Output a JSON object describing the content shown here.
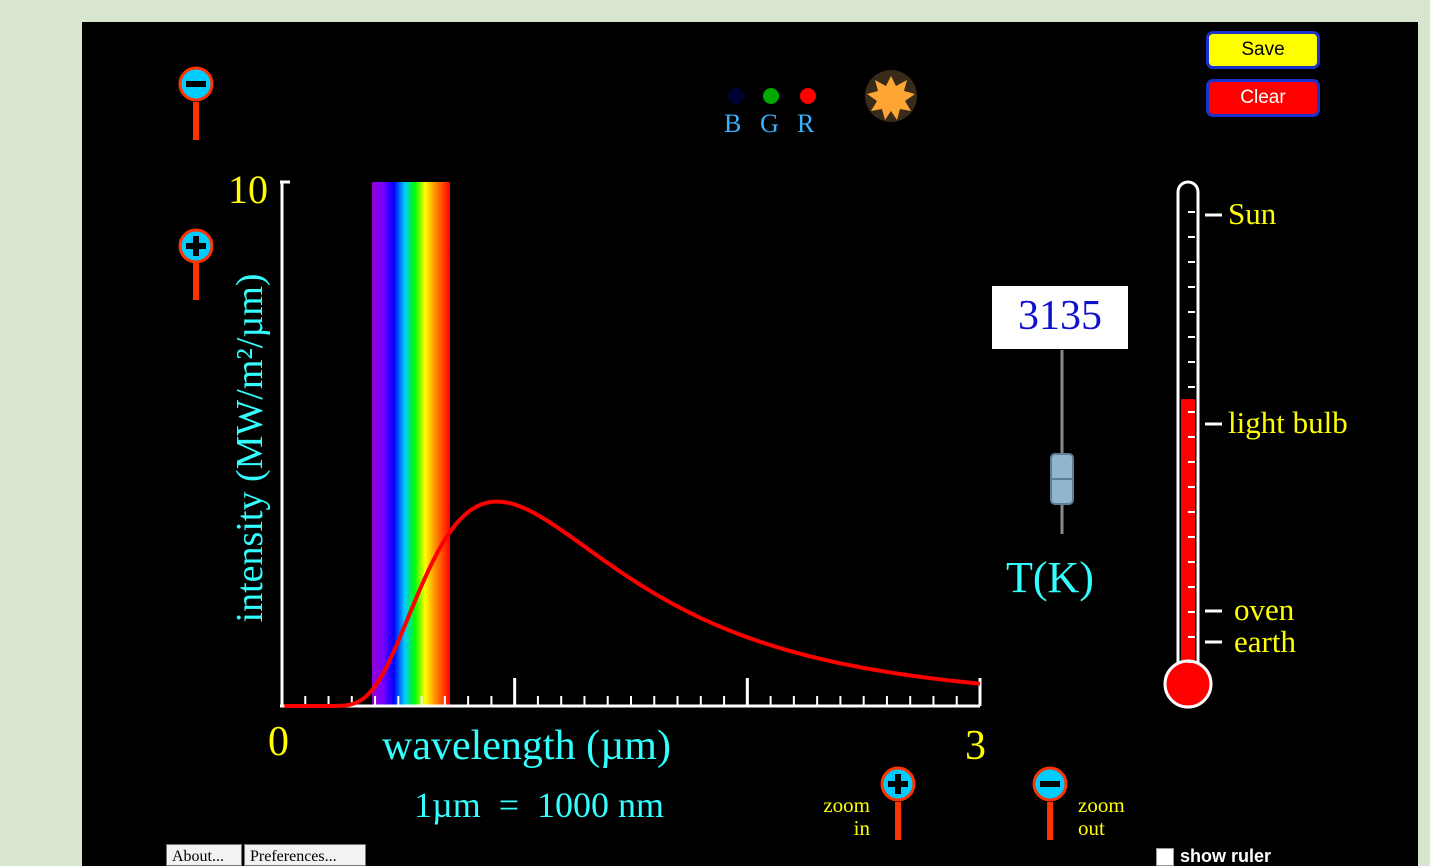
{
  "buttons": {
    "save": "Save",
    "clear": "Clear",
    "about": "About...",
    "preferences": "Preferences..."
  },
  "bgr": {
    "b": "B",
    "g": "G",
    "r": "R"
  },
  "graph": {
    "y_label": "intensity (MW/m²/µm)",
    "y_max_label": "10",
    "x_min_label": "0",
    "x_max_label": "3",
    "x_label": "wavelength (µm)",
    "unit_note": "1µm  =  1000 nm"
  },
  "temperature": {
    "value": "3135",
    "label": "T(K)"
  },
  "thermometer": {
    "marks": [
      "Sun",
      "light bulb",
      "oven",
      "earth"
    ],
    "fill_fraction": 0.58
  },
  "zoom": {
    "in": "zoom in",
    "out": "zoom out"
  },
  "ruler": {
    "label": "show ruler",
    "checked": false
  },
  "colors": {
    "curve": "#ff0000",
    "axis": "#ffffff",
    "label": "#33ffff",
    "tick_label": "#ffff00"
  }
}
